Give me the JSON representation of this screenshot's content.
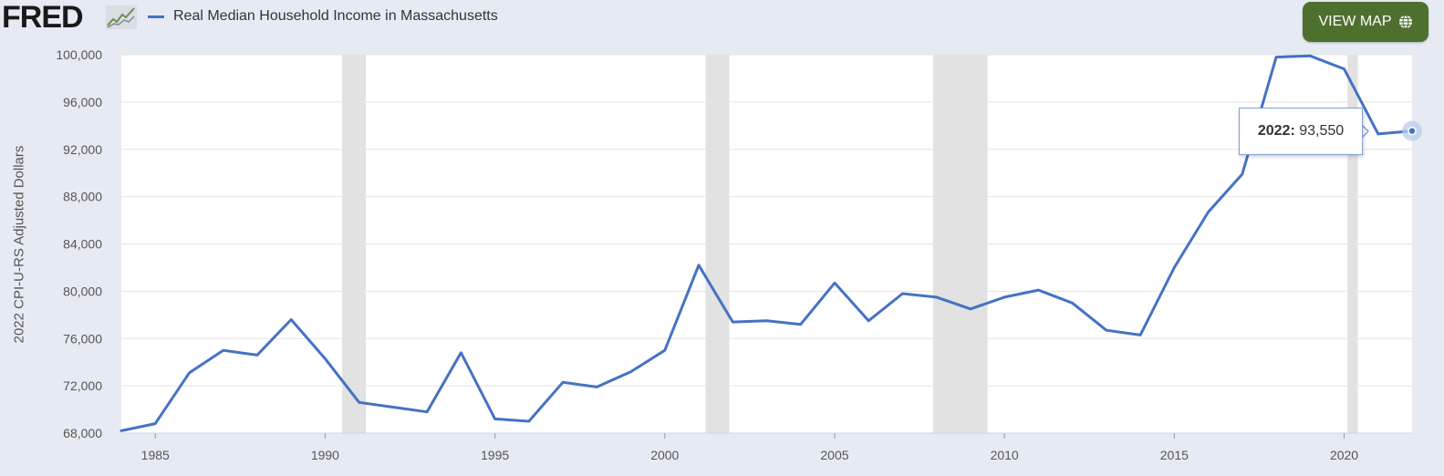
{
  "header": {
    "logo": "FRED",
    "logo_icon": "trend-chart-icon",
    "legend_label": "Real Median Household Income in Massachusetts",
    "view_map_label": "VIEW MAP",
    "view_map_icon": "globe-icon"
  },
  "tooltip": {
    "year": "2022",
    "value": "93,550"
  },
  "colors": {
    "series": "#4572c4",
    "recession": "#e2e2e2",
    "plot_bg": "#ffffff",
    "page_bg": "#e6ebf3",
    "button": "#4f6f2f"
  },
  "chart_data": {
    "type": "line",
    "title": "",
    "xlabel": "",
    "ylabel": "2022 CPI-U-RS Adjusted Dollars",
    "xlim": [
      1984,
      2022
    ],
    "ylim": [
      68000,
      100000
    ],
    "grid": true,
    "x_ticks": [
      "1985",
      "1990",
      "1995",
      "2000",
      "2005",
      "2010",
      "2015",
      "2020"
    ],
    "y_ticks": [
      "68,000",
      "72,000",
      "76,000",
      "80,000",
      "84,000",
      "88,000",
      "92,000",
      "96,000",
      "100,000"
    ],
    "recessions": [
      [
        1990.5,
        1991.2
      ],
      [
        2001.2,
        2001.9
      ],
      [
        2007.9,
        2009.5
      ],
      [
        2020.1,
        2020.4
      ]
    ],
    "series": [
      {
        "name": "Real Median Household Income in Massachusetts",
        "x": [
          1984,
          1985,
          1986,
          1987,
          1988,
          1989,
          1990,
          1991,
          1992,
          1993,
          1994,
          1995,
          1996,
          1997,
          1998,
          1999,
          2000,
          2001,
          2002,
          2003,
          2004,
          2005,
          2006,
          2007,
          2008,
          2009,
          2010,
          2011,
          2012,
          2013,
          2014,
          2015,
          2016,
          2017,
          2018,
          2019,
          2020,
          2021,
          2022
        ],
        "y": [
          68200,
          68800,
          73100,
          75000,
          74600,
          77600,
          74300,
          70600,
          70200,
          69800,
          74800,
          69200,
          69000,
          72300,
          71900,
          73200,
          75000,
          82200,
          77400,
          77500,
          77200,
          80700,
          77500,
          79800,
          79500,
          78500,
          79500,
          80100,
          79000,
          76700,
          76300,
          82000,
          86700,
          89900,
          99800,
          99900,
          98800,
          93300,
          93550
        ]
      }
    ]
  }
}
